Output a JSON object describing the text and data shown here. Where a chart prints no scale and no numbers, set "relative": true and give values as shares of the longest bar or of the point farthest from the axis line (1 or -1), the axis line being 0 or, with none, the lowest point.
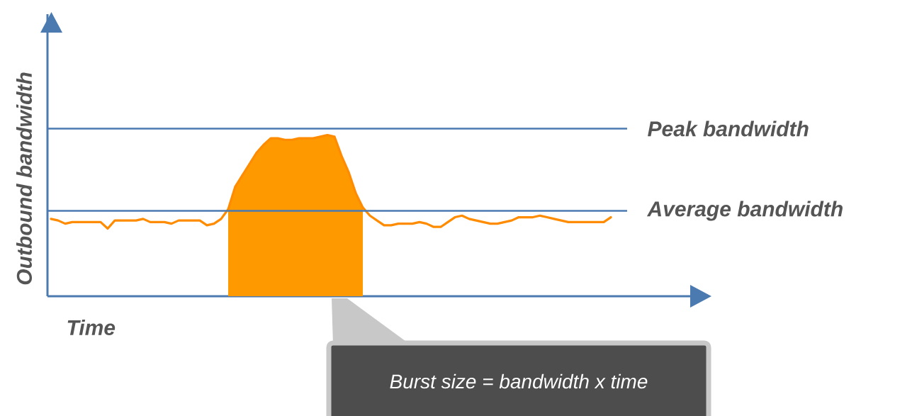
{
  "chart_data": {
    "type": "line",
    "relative": true,
    "xlabel": "Time",
    "ylabel": "Outbound bandwidth",
    "categories": [
      null,
      null,
      null,
      null,
      null,
      null,
      null,
      null,
      null,
      null,
      null,
      null,
      null,
      null,
      null,
      null,
      null,
      null,
      null,
      null,
      null,
      null,
      null,
      null,
      null,
      null,
      null,
      null,
      null,
      null,
      null,
      null,
      null,
      null,
      null,
      null,
      null,
      null,
      null,
      null,
      null,
      null,
      null,
      null,
      null,
      null,
      null,
      null,
      null,
      null,
      null,
      null,
      null,
      null,
      null,
      null,
      null,
      null,
      null,
      null,
      null,
      null,
      null,
      null,
      null,
      null,
      null,
      null,
      null,
      null,
      null,
      null,
      null,
      null,
      null,
      null,
      null,
      null,
      null,
      null
    ],
    "series": [
      {
        "type": "area",
        "color": "#ff9900",
        "values": [
          null,
          null,
          null,
          null,
          null,
          null,
          null,
          null,
          null,
          null,
          null,
          null,
          null,
          null,
          null,
          null,
          null,
          null,
          null,
          null,
          null,
          null,
          null,
          null,
          null,
          0.54,
          0.68,
          0.75,
          0.82,
          0.89,
          0.94,
          0.98,
          0.98,
          0.97,
          0.97,
          0.98,
          0.98,
          0.98,
          0.99,
          1.0,
          0.99,
          0.87,
          0.77,
          0.64,
          0.55,
          null,
          null,
          null,
          null,
          null,
          null,
          null,
          null,
          null,
          null,
          null,
          null,
          null,
          null,
          null,
          null,
          null,
          null,
          null,
          null,
          null,
          null,
          null,
          null,
          null,
          null,
          null,
          null,
          null,
          null,
          null,
          null,
          null,
          null,
          null
        ]
      },
      {
        "color": "#ff8c00",
        "values": [
          0.48,
          0.47,
          0.45,
          0.46,
          0.46,
          0.46,
          0.46,
          0.46,
          0.42,
          0.47,
          0.47,
          0.47,
          0.47,
          0.48,
          0.46,
          0.46,
          0.46,
          0.45,
          0.47,
          0.47,
          0.47,
          0.47,
          0.44,
          0.45,
          0.48,
          0.54,
          0.68,
          0.75,
          0.82,
          0.89,
          0.94,
          0.98,
          0.98,
          0.97,
          0.97,
          0.98,
          0.98,
          0.98,
          0.99,
          1.0,
          0.99,
          0.87,
          0.77,
          0.64,
          0.55,
          0.5,
          0.47,
          0.44,
          0.44,
          0.45,
          0.45,
          0.45,
          0.46,
          0.45,
          0.43,
          0.43,
          0.46,
          0.49,
          0.5,
          0.48,
          0.47,
          0.46,
          0.45,
          0.45,
          0.46,
          0.47,
          0.49,
          0.49,
          0.49,
          0.5,
          0.49,
          0.48,
          0.47,
          0.46,
          0.46,
          0.46,
          0.46,
          0.46,
          0.46,
          0.49
        ]
      }
    ],
    "ref_lines": [
      {
        "axis": "y",
        "value": 1.04,
        "label": "Peak bandwidth",
        "color": "#4a7ab0"
      },
      {
        "axis": "y",
        "value": 0.53,
        "label": "Average bandwidth",
        "color": "#4a7ab0"
      }
    ],
    "annotations": [
      "Burst size = bandwidth x time"
    ]
  }
}
